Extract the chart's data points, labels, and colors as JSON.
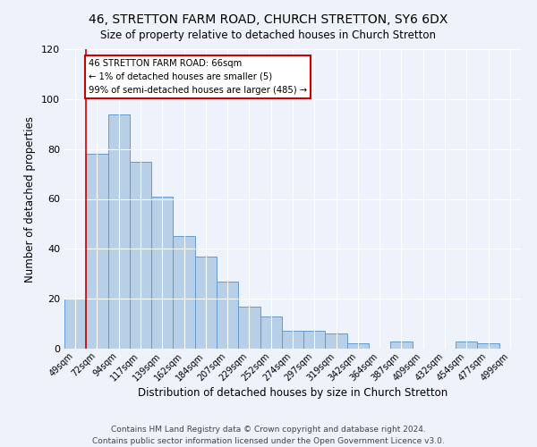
{
  "title": "46, STRETTON FARM ROAD, CHURCH STRETTON, SY6 6DX",
  "subtitle": "Size of property relative to detached houses in Church Stretton",
  "xlabel": "Distribution of detached houses by size in Church Stretton",
  "ylabel": "Number of detached properties",
  "bar_labels": [
    "49sqm",
    "72sqm",
    "94sqm",
    "117sqm",
    "139sqm",
    "162sqm",
    "184sqm",
    "207sqm",
    "229sqm",
    "252sqm",
    "274sqm",
    "297sqm",
    "319sqm",
    "342sqm",
    "364sqm",
    "387sqm",
    "409sqm",
    "432sqm",
    "454sqm",
    "477sqm",
    "499sqm"
  ],
  "bar_values": [
    20,
    78,
    94,
    75,
    61,
    45,
    37,
    27,
    17,
    13,
    7,
    7,
    6,
    2,
    0,
    3,
    0,
    0,
    3,
    2,
    0
  ],
  "bar_color": "#b8cfe8",
  "bar_edge_color": "#6699cc",
  "highlight_line_color": "#cc0000",
  "annotation_text": "46 STRETTON FARM ROAD: 66sqm\n← 1% of detached houses are smaller (5)\n99% of semi-detached houses are larger (485) →",
  "annotation_box_color": "#ffffff",
  "annotation_box_edge": "#cc0000",
  "ylim": [
    0,
    120
  ],
  "yticks": [
    0,
    20,
    40,
    60,
    80,
    100,
    120
  ],
  "footer_line1": "Contains HM Land Registry data © Crown copyright and database right 2024.",
  "footer_line2": "Contains public sector information licensed under the Open Government Licence v3.0.",
  "bg_color": "#edf2fb",
  "plot_bg_color": "#edf2fb",
  "title_fontsize": 10,
  "footer_fontsize": 6.5
}
